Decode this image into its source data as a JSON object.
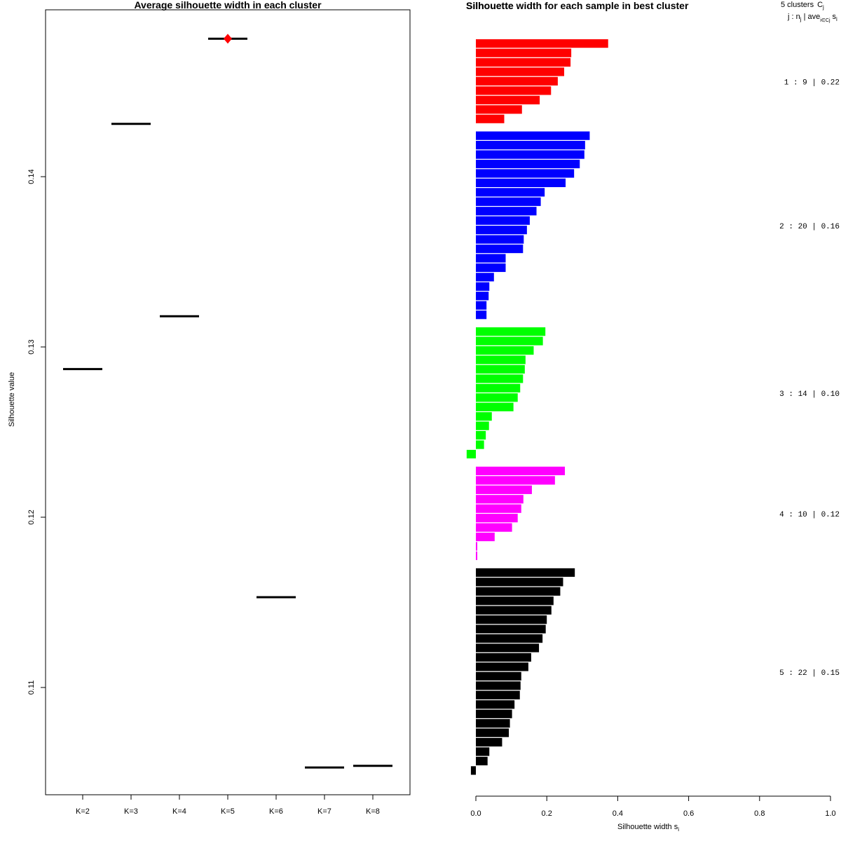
{
  "chart_data": [
    {
      "type": "scatter",
      "title": "Average silhouette width in each cluster",
      "xlabel": "",
      "ylabel": "Silhouette value",
      "categories": [
        "K=2",
        "K=3",
        "K=4",
        "K=5",
        "K=6",
        "K=7",
        "K=8"
      ],
      "values": [
        0.1287,
        0.1431,
        0.1318,
        0.1481,
        0.1153,
        0.1053,
        0.1054
      ],
      "best_index": 3,
      "best_color": "#ff0000",
      "line_color": "#000000",
      "yticks": [
        0.11,
        0.12,
        0.13,
        0.14
      ],
      "ytick_labels": [
        "0.11",
        "0.12",
        "0.13",
        "0.14"
      ],
      "ylim": [
        0.1037,
        0.1498
      ]
    },
    {
      "type": "bar",
      "title": "Silhouette width for each sample in best cluster",
      "title_overlap_text": "Silhouette",
      "xlabel": "Silhouette width s",
      "xlabel_subscript": "i",
      "xlim": [
        0,
        1
      ],
      "xticks": [
        0.0,
        0.2,
        0.4,
        0.6,
        0.8,
        1.0
      ],
      "xtick_labels": [
        "0.0",
        "0.2",
        "0.4",
        "0.6",
        "0.8",
        "1.0"
      ],
      "legend_header_main": "5 clusters",
      "legend_header_symbol": "C",
      "legend_header_symbol_sub": "j",
      "legend_subheader_main": "j : n",
      "legend_subheader_n_sub": "j",
      "legend_subheader_mid": " | ave",
      "legend_subheader_ave_sub": "i∈Cj",
      "legend_subheader_end": "s",
      "legend_subheader_end_sub": "i",
      "series": [
        {
          "name": "1",
          "label": "1 :  9  |  0.22",
          "color": "#ff0000",
          "values": [
            0.373,
            0.269,
            0.267,
            0.249,
            0.231,
            0.212,
            0.18,
            0.13,
            0.08
          ]
        },
        {
          "name": "2",
          "label": "2 :  20  |  0.16",
          "color": "#0000ff",
          "values": [
            0.321,
            0.308,
            0.306,
            0.293,
            0.277,
            0.253,
            0.194,
            0.183,
            0.171,
            0.152,
            0.144,
            0.135,
            0.133,
            0.084,
            0.084,
            0.051,
            0.038,
            0.036,
            0.03,
            0.03
          ]
        },
        {
          "name": "3",
          "label": "3 :  14  |  0.10",
          "color": "#00ff00",
          "values": [
            0.196,
            0.189,
            0.163,
            0.14,
            0.138,
            0.133,
            0.125,
            0.118,
            0.106,
            0.045,
            0.037,
            0.028,
            0.023,
            -0.026
          ]
        },
        {
          "name": "4",
          "label": "4 :  10  |  0.12",
          "color": "#ff00ff",
          "values": [
            0.251,
            0.223,
            0.158,
            0.134,
            0.128,
            0.118,
            0.102,
            0.053,
            0.004,
            0.004
          ]
        },
        {
          "name": "5",
          "label": "5 :  22  |  0.15",
          "color": "#000000",
          "values": [
            0.279,
            0.246,
            0.238,
            0.219,
            0.213,
            0.2,
            0.197,
            0.188,
            0.178,
            0.156,
            0.148,
            0.128,
            0.126,
            0.124,
            0.109,
            0.102,
            0.096,
            0.093,
            0.074,
            0.038,
            0.033,
            -0.014
          ]
        }
      ]
    }
  ]
}
